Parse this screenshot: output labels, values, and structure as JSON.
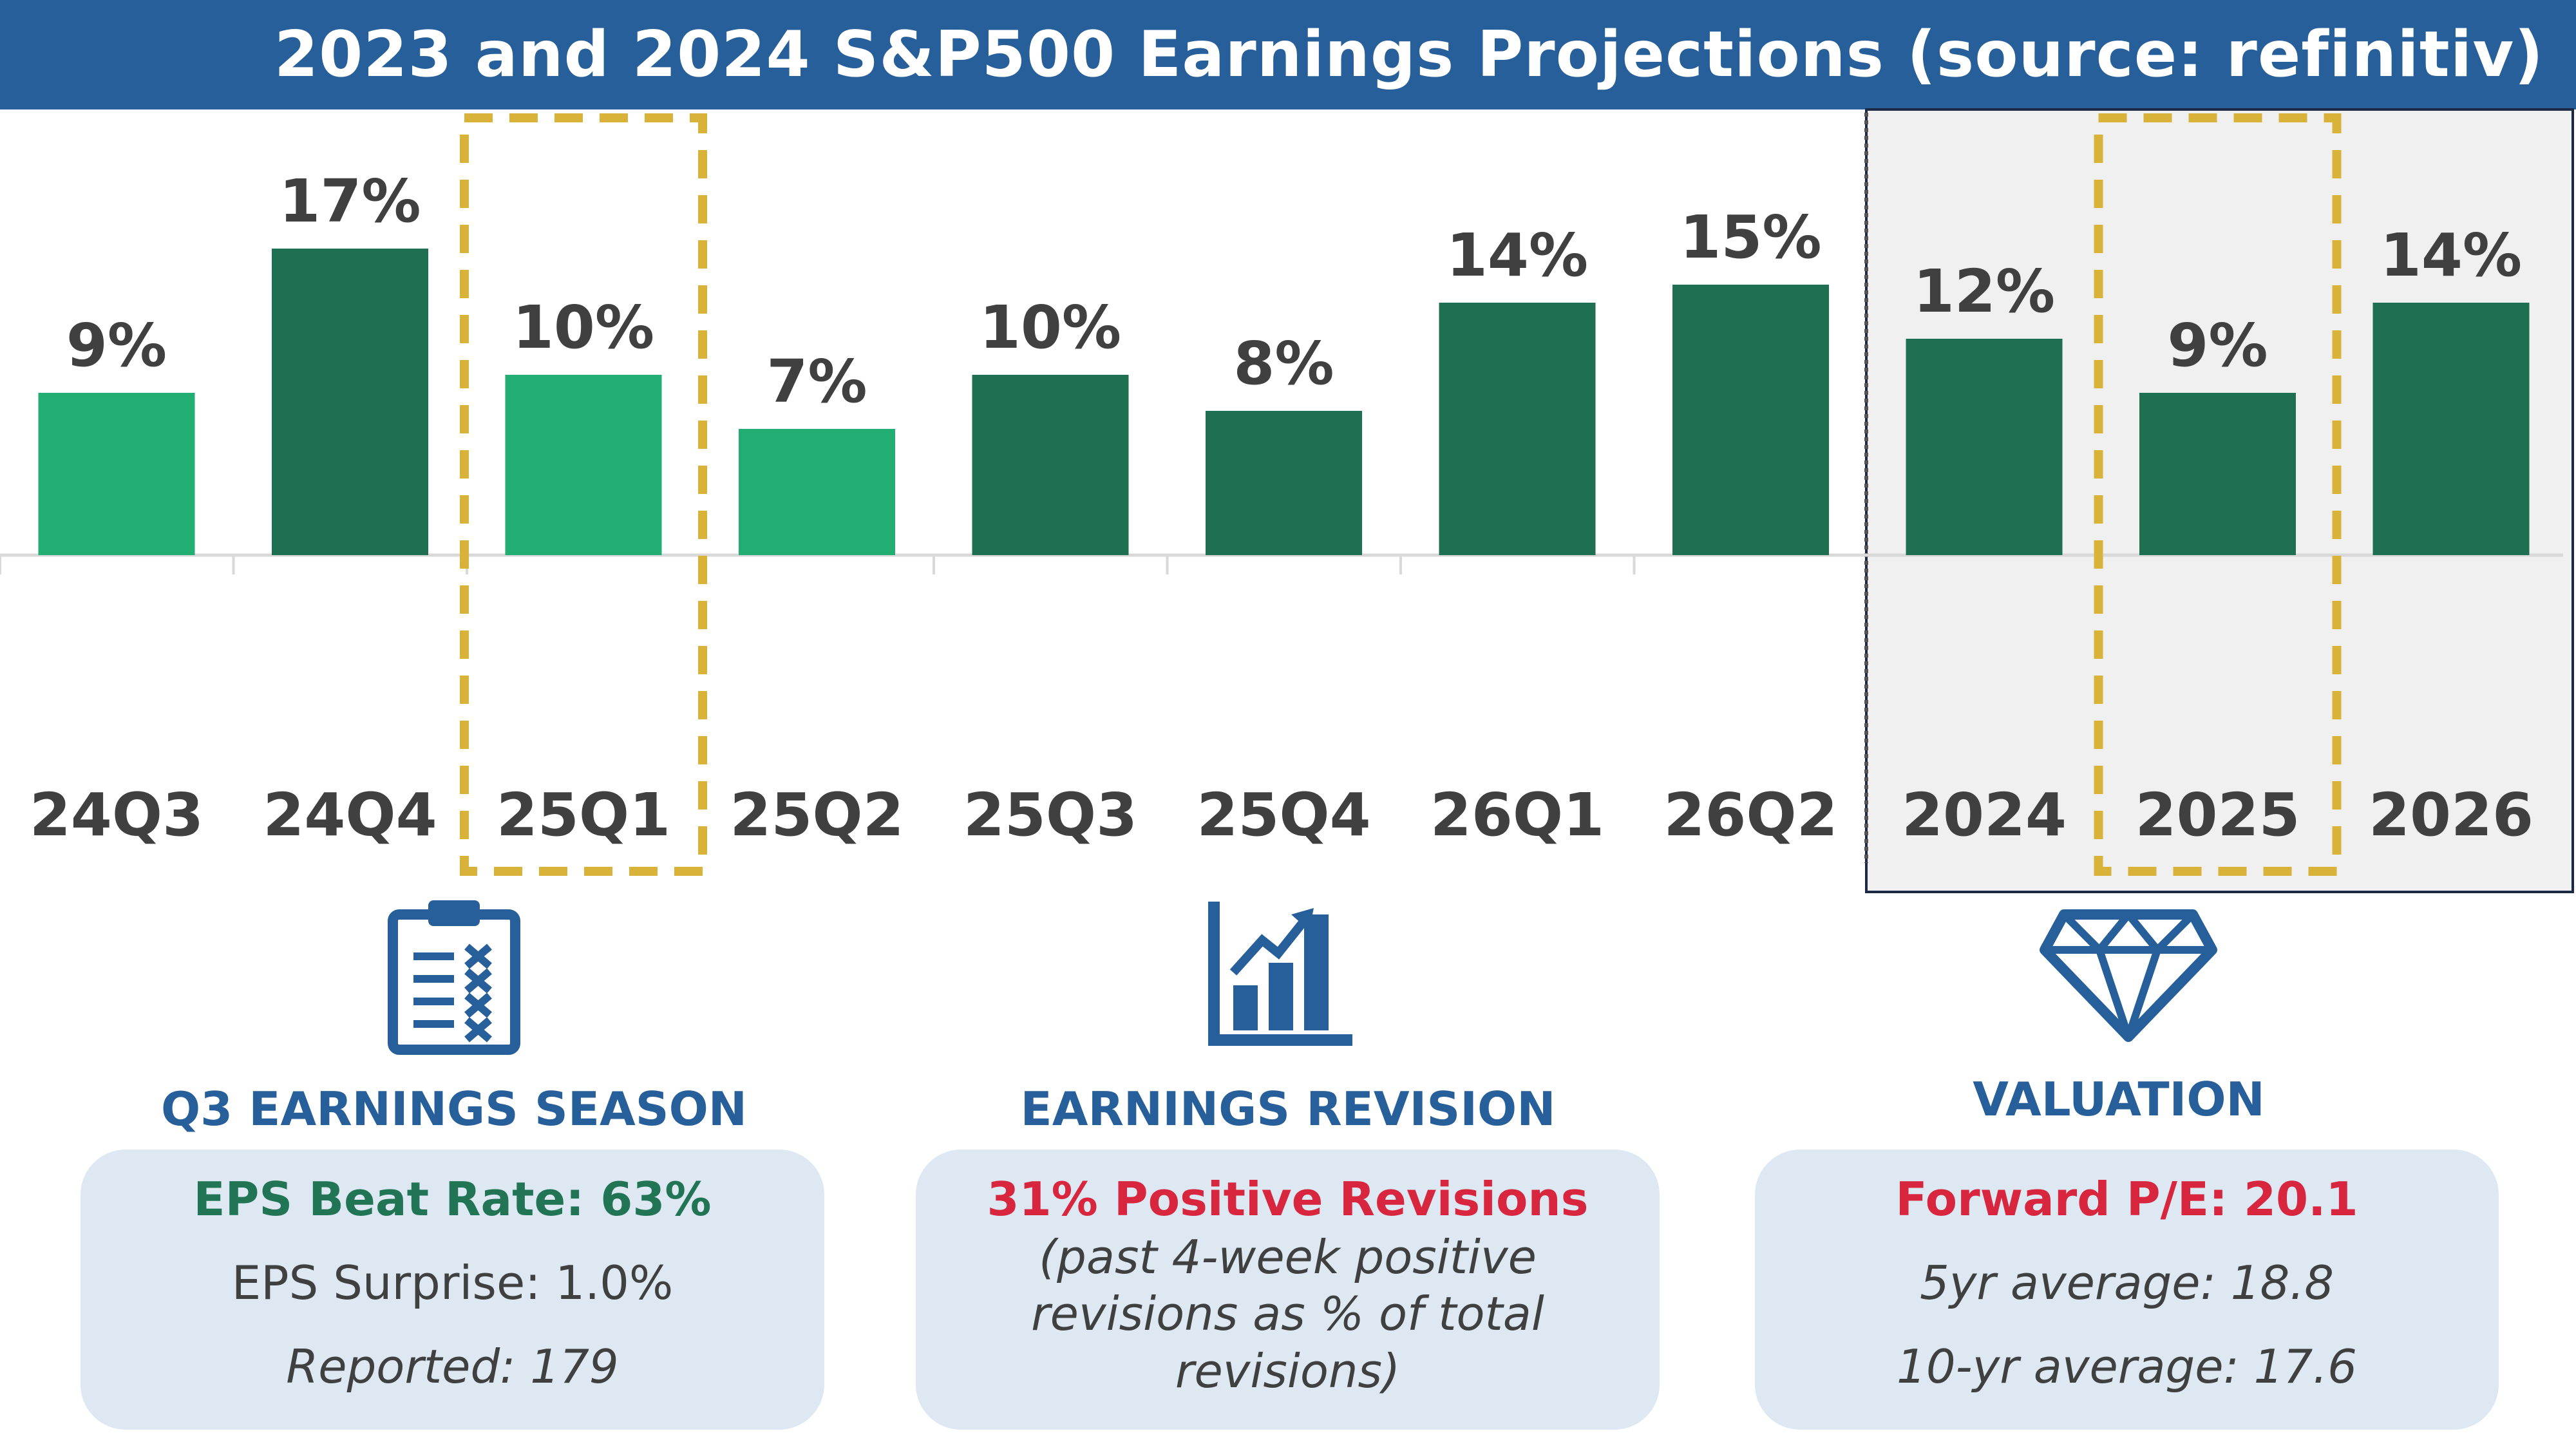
{
  "header": {
    "title": "2023 and 2024 S&P500 Earnings Projections (source: refinitiv)"
  },
  "chart_data": {
    "type": "bar",
    "categories": [
      "24Q3",
      "24Q4",
      "25Q1",
      "25Q2",
      "25Q3",
      "25Q4",
      "26Q1",
      "26Q2",
      "2024",
      "2025",
      "2026"
    ],
    "values": [
      9,
      17,
      10,
      7,
      10,
      8,
      14,
      15,
      12,
      9,
      14
    ],
    "data_labels": [
      "9%",
      "17%",
      "10%",
      "7%",
      "10%",
      "8%",
      "14%",
      "15%",
      "12%",
      "9%",
      "14%"
    ],
    "highlighted": [
      "25Q1",
      "2025"
    ],
    "grid": false,
    "colors": {
      "light_bar": "#22ad72",
      "dark_bar": "#1f7053",
      "highlight_outline": "#d9b23a",
      "annual_panel_bg": "#f0f0f0"
    },
    "bar_styles": [
      "light",
      "dark",
      "light",
      "light",
      "dark",
      "dark",
      "dark",
      "dark",
      "dark",
      "dark",
      "dark"
    ]
  },
  "panels": {
    "earnings_season": {
      "icon": "clipboard-checklist-icon",
      "title": "Q3 EARNINGS SEASON",
      "line1": "EPS Beat Rate: 63%",
      "line2": "EPS Surprise: 1.0%",
      "line3": "Reported: 179"
    },
    "earnings_revision": {
      "icon": "bar-chart-growth-icon",
      "title": "EARNINGS REVISION",
      "line1": "31% Positive Revisions",
      "line2": "(past 4-week positive",
      "line3": "revisions as % of total",
      "line4": "revisions)"
    },
    "valuation": {
      "icon": "diamond-icon",
      "title": "VALUATION",
      "line1": "Forward P/E: 20.1",
      "line2": "5yr average: 18.8",
      "line3": "10-yr average: 17.6"
    }
  },
  "colors": {
    "brand_blue": "#265f99",
    "green": "#217554",
    "red": "#d7263d",
    "box_bg": "#dde8f3"
  }
}
